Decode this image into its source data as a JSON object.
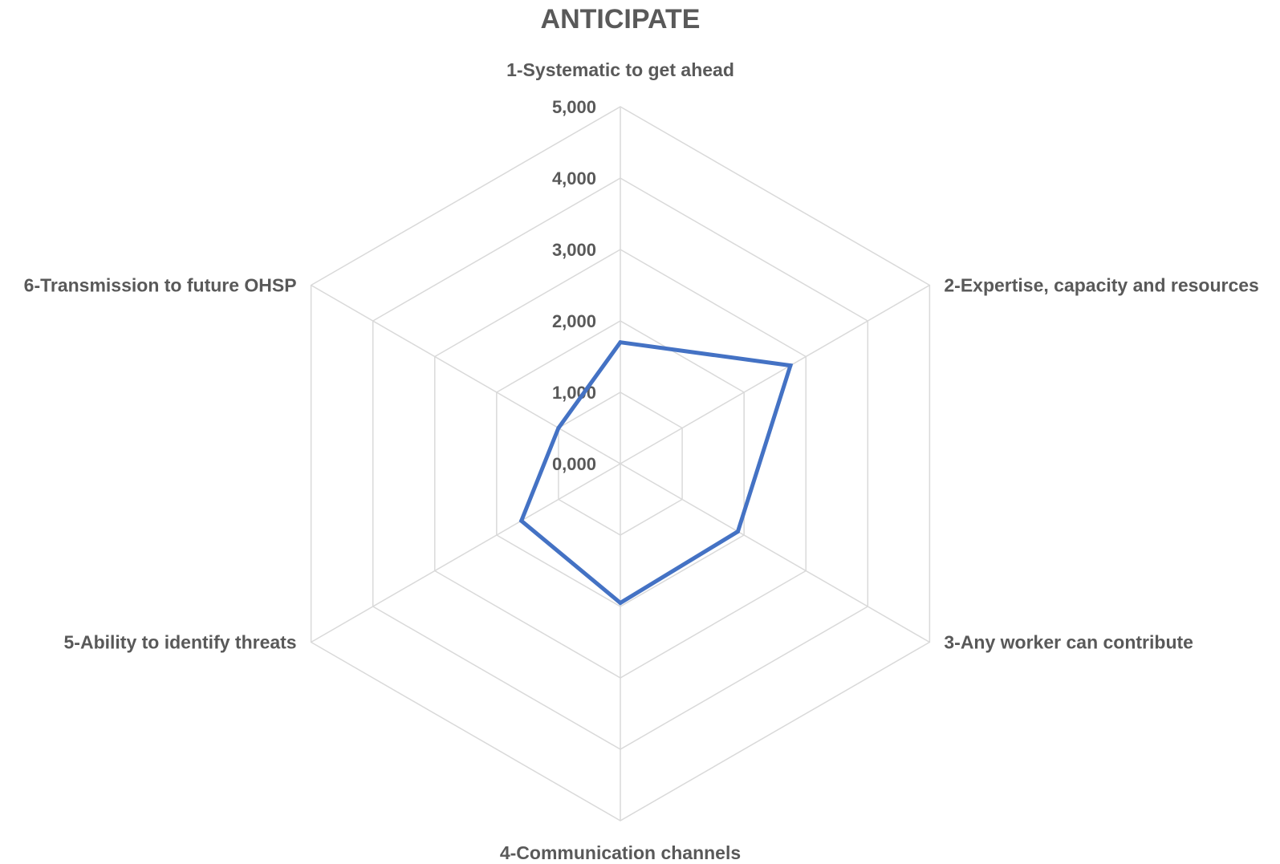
{
  "chart_data": {
    "type": "radar",
    "title": "ANTICIPATE",
    "categories": [
      "1-Systematic to get ahead",
      "2-Expertise, capacity and resources",
      "3-Any worker can contribute",
      "4-Communication channels",
      "5-Ability to identify threats",
      "6-Transmission to future OHSP"
    ],
    "ticks": [
      "0,000",
      "1,000",
      "2,000",
      "3,000",
      "4,000",
      "5,000"
    ],
    "ylim": [
      0,
      5
    ],
    "grid": true,
    "legend": "none",
    "series": [
      {
        "values": [
          1.7,
          2.75,
          1.9,
          1.95,
          1.6,
          1.0
        ],
        "color": "#4472C4"
      }
    ]
  }
}
